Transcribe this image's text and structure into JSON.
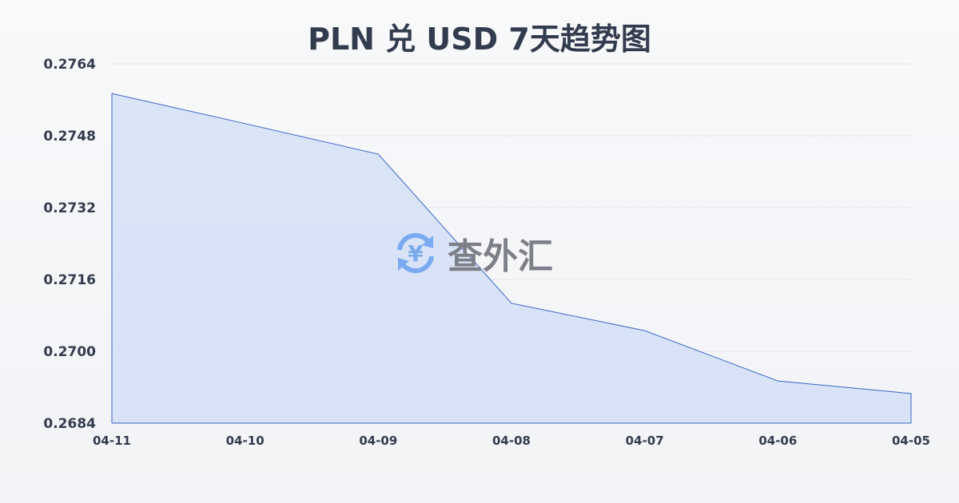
{
  "chart_data": {
    "type": "area",
    "title": "PLN 兑 USD 7天趋势图",
    "categories": [
      "04-11",
      "04-10",
      "04-09",
      "04-08",
      "04-07",
      "04-06",
      "04-05"
    ],
    "values": [
      0.27574,
      0.27507,
      0.27439,
      0.27107,
      0.27046,
      0.26934,
      0.26906
    ],
    "yticks": [
      "0.2764",
      "0.2748",
      "0.2732",
      "0.2716",
      "0.2700",
      "0.2684"
    ],
    "ylim": [
      0.2684,
      0.2764
    ],
    "grid": true,
    "colors": {
      "line": "#3a66c8",
      "fill": "#d6e1f6"
    }
  },
  "watermark": {
    "text": "查外汇",
    "icon": "yen-exchange-icon",
    "color": "#7aaaf0"
  }
}
